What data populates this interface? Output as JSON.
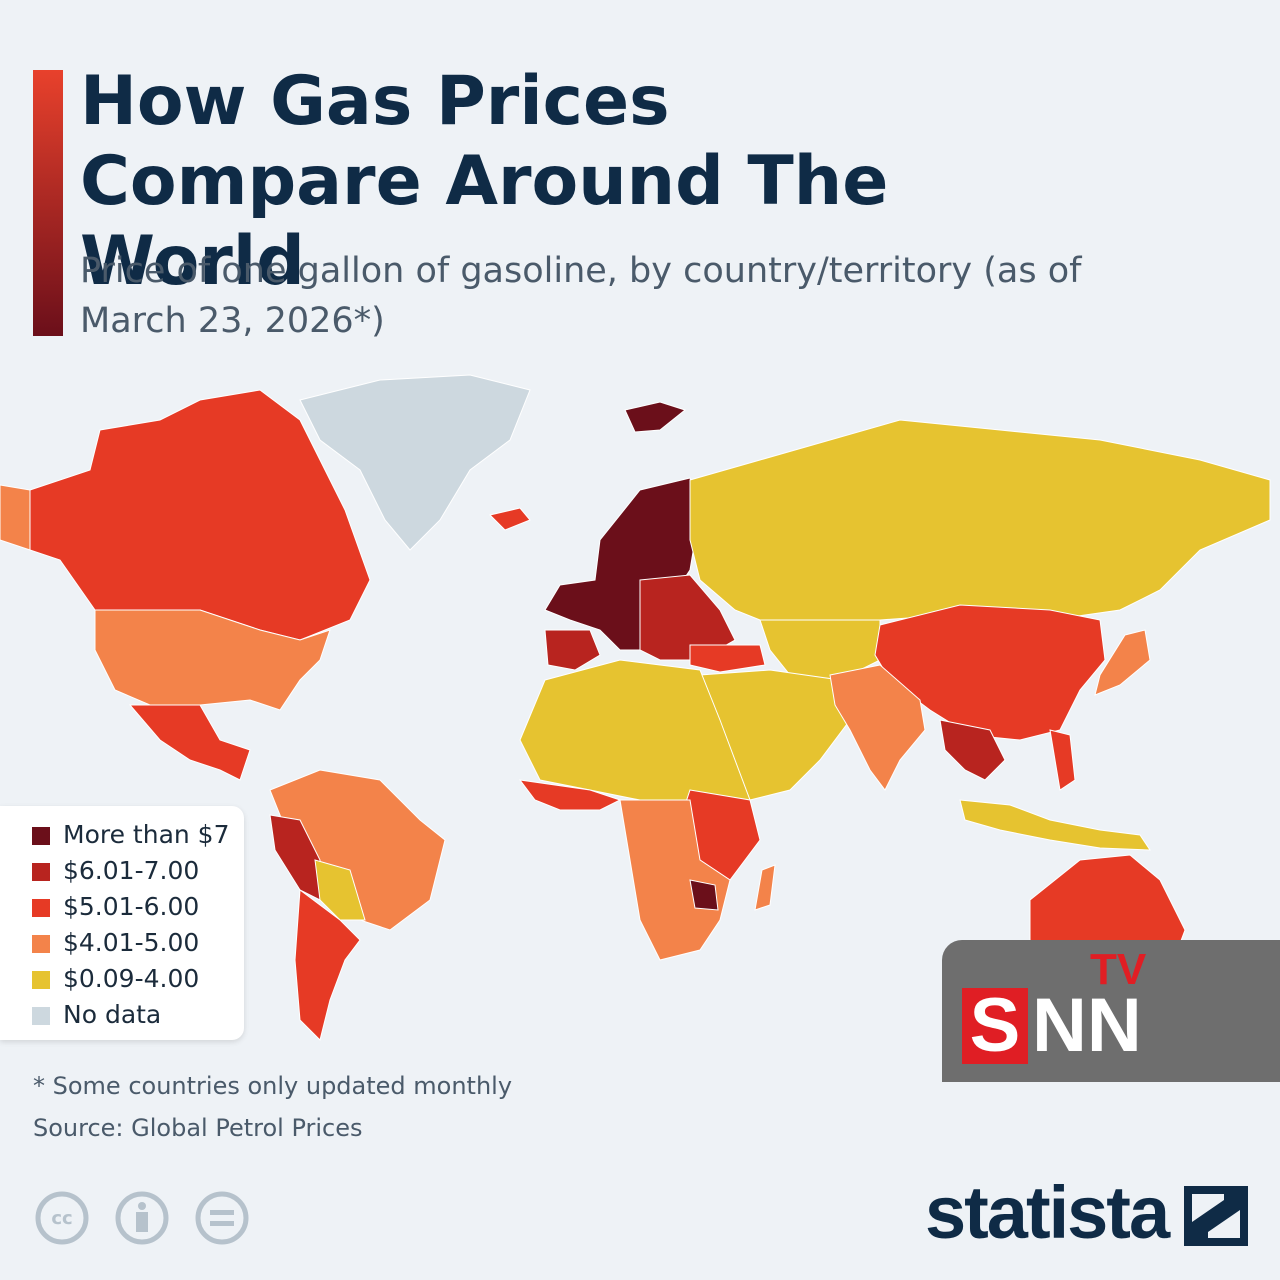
{
  "header": {
    "title": "How Gas Prices Compare Around The World",
    "subtitle": "Price of one gallon of gasoline, by country/territory (as of March 23, 2026*)"
  },
  "legend": {
    "items": [
      {
        "label": "More than $7",
        "color": "#6b0f1a"
      },
      {
        "label": "$6.01-7.00",
        "color": "#b8241f"
      },
      {
        "label": "$5.01-6.00",
        "color": "#e63a25"
      },
      {
        "label": "$4.01-5.00",
        "color": "#f3834a"
      },
      {
        "label": "$0.09-4.00",
        "color": "#e6c330"
      },
      {
        "label": "No data",
        "color": "#cdd8df"
      }
    ]
  },
  "footnote": "* Some countries only updated monthly",
  "source": "Source: Global Petrol Prices",
  "license": {
    "cc": "cc"
  },
  "brand": "statista",
  "watermark": {
    "sup": "TV",
    "first": "S",
    "rest": "NN"
  }
}
